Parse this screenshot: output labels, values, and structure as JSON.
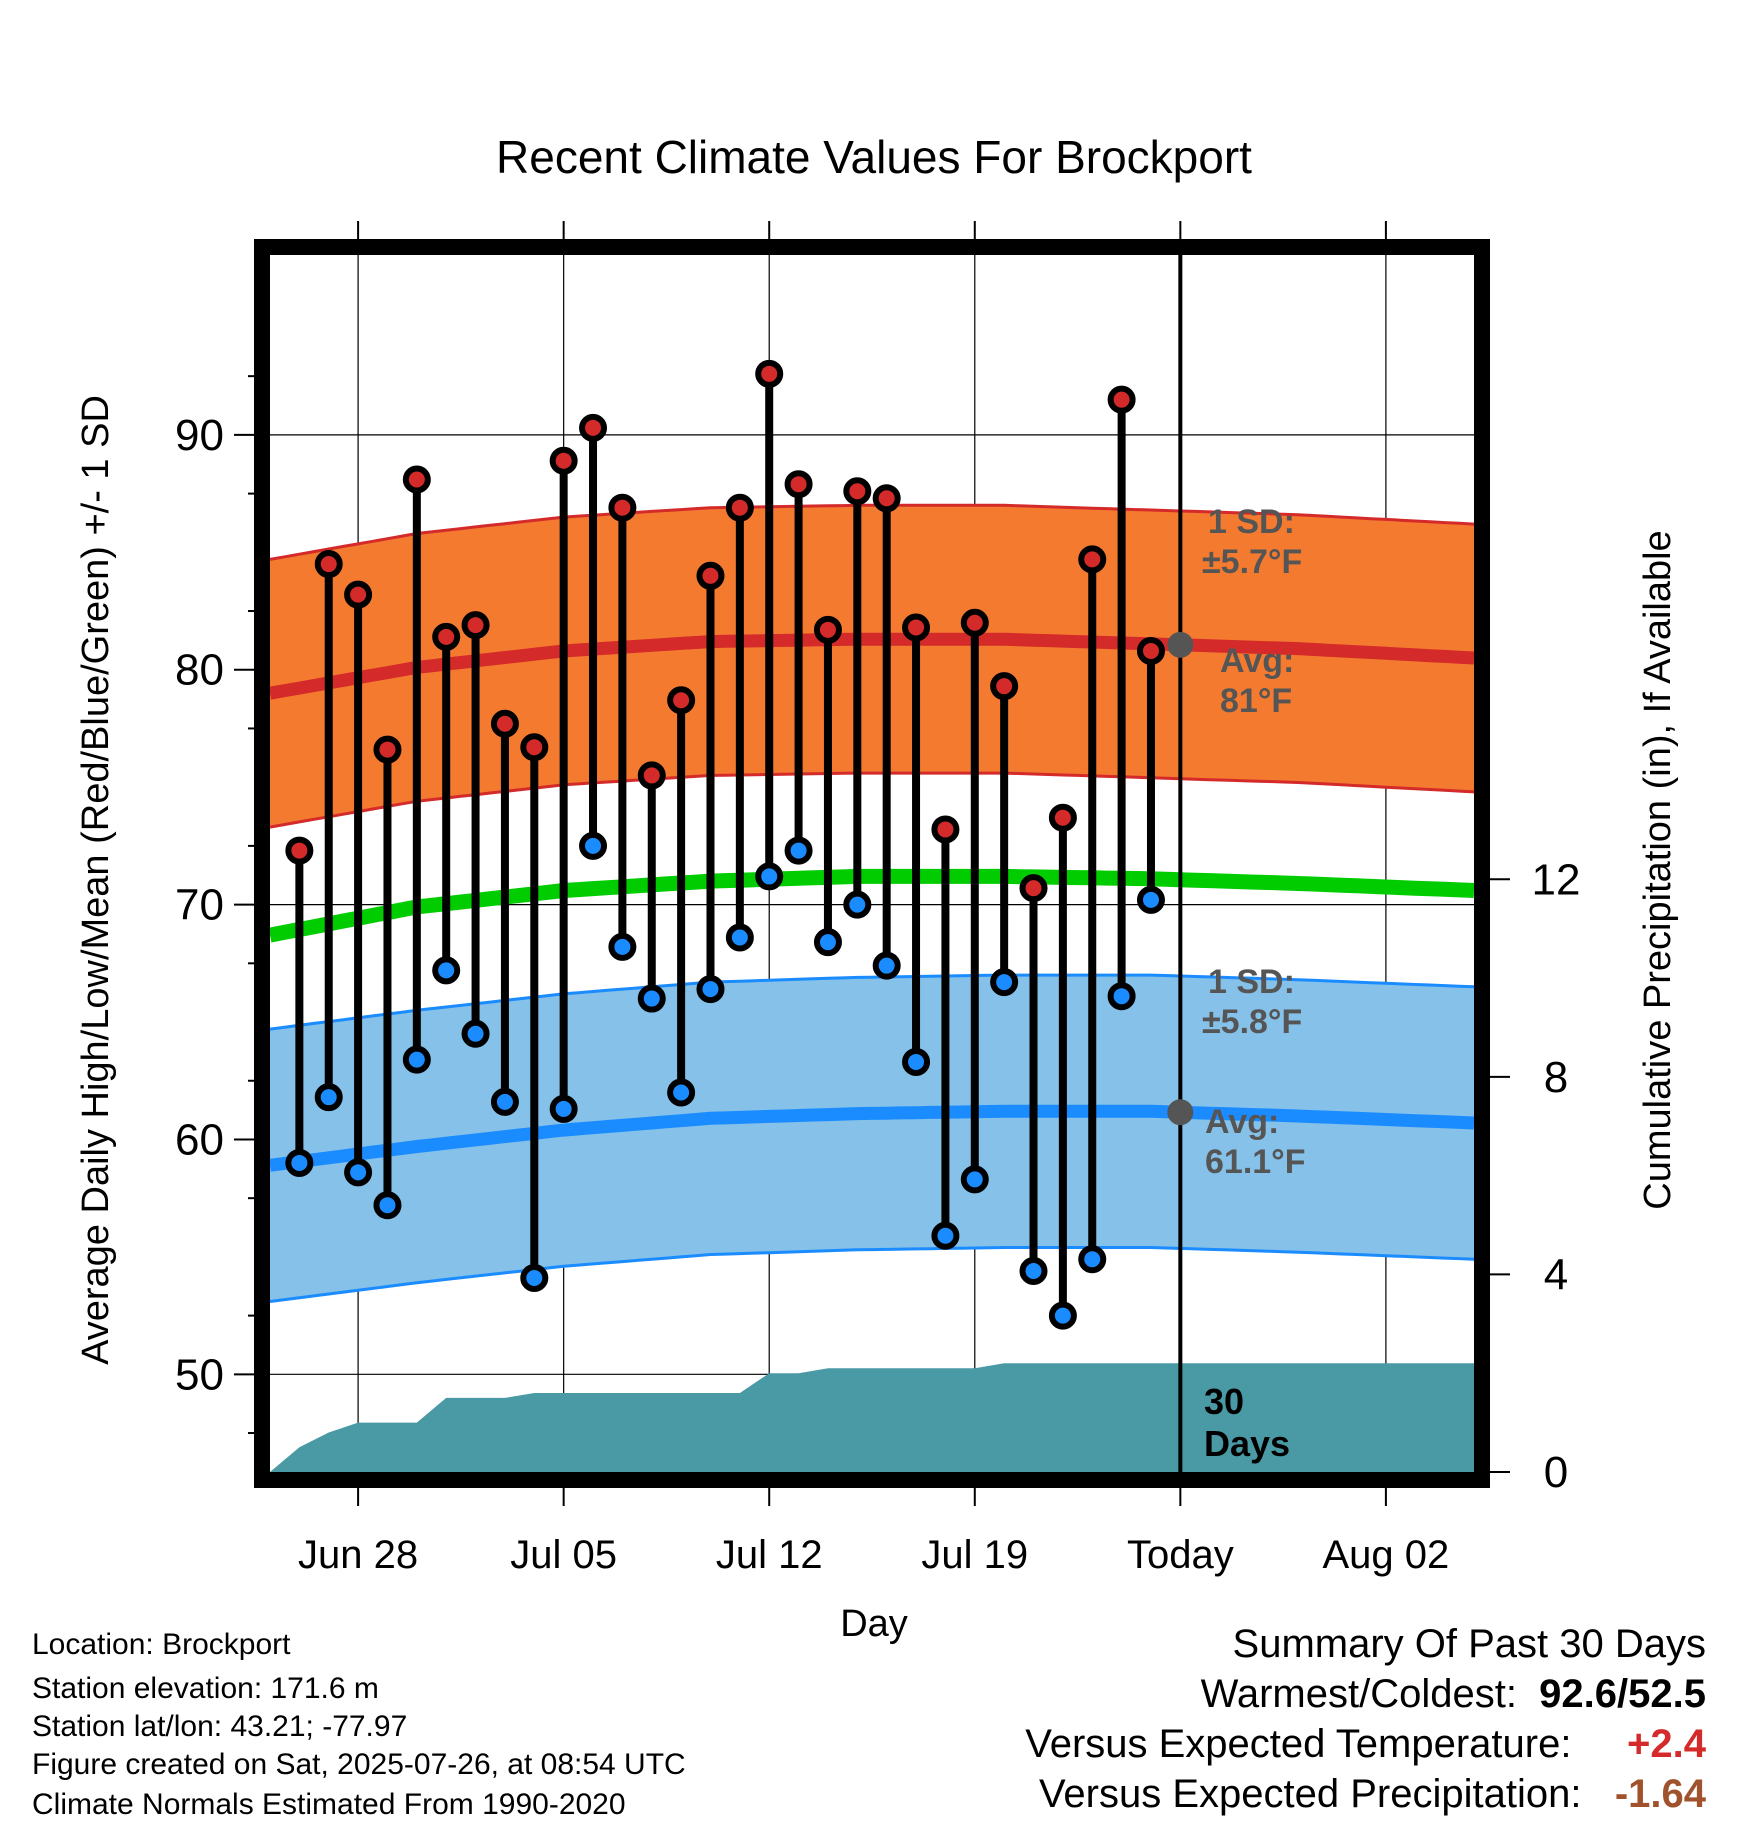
{
  "chart_data": {
    "type": "line",
    "title": "Recent Climate Values For Brockport",
    "xlabel": "Day",
    "ylabel": "Average Daily High/Low/Mean (Red/Blue/Green) +/- 1 SD",
    "y2label": "Cumulative Precipitation (in), If Available",
    "x_tick_labels": [
      "Jun 28",
      "Jul 05",
      "Jul 12",
      "Jul 19",
      "Today",
      "Aug 02"
    ],
    "x_tick_days": [
      3,
      10,
      17,
      24,
      31,
      38
    ],
    "x_range": [
      0,
      41
    ],
    "y_ticks": [
      50,
      60,
      70,
      80,
      90
    ],
    "ylim": [
      45.5,
      98
    ],
    "y2_ticks": [
      0,
      4,
      8,
      12
    ],
    "y2lim": [
      0,
      24.8
    ],
    "grid": true,
    "today_day": 31,
    "days": [
      1,
      2,
      3,
      4,
      5,
      6,
      7,
      8,
      9,
      10,
      11,
      12,
      13,
      14,
      15,
      16,
      17,
      18,
      19,
      20,
      21,
      22,
      23,
      24,
      25,
      26,
      27,
      28,
      29,
      30
    ],
    "daily_high": [
      72.3,
      84.5,
      83.2,
      76.6,
      88.1,
      81.4,
      81.9,
      77.7,
      76.7,
      88.9,
      90.3,
      86.9,
      75.5,
      78.7,
      84.0,
      86.9,
      92.6,
      87.9,
      81.7,
      87.6,
      87.3,
      81.8,
      73.2,
      82.0,
      79.3,
      70.7,
      73.7,
      84.7,
      91.5,
      80.8
    ],
    "daily_low": [
      59.0,
      61.8,
      58.6,
      57.2,
      63.4,
      67.2,
      64.5,
      61.6,
      54.1,
      61.3,
      72.5,
      68.2,
      66.0,
      62.0,
      66.4,
      68.6,
      71.2,
      72.3,
      68.4,
      70.0,
      67.4,
      63.3,
      55.9,
      58.3,
      66.7,
      54.4,
      52.5,
      54.9,
      66.1,
      70.2
    ],
    "normal_days": [
      0,
      5,
      10,
      15,
      20,
      25,
      30,
      35,
      41
    ],
    "normal_high": [
      79.0,
      80.1,
      80.8,
      81.2,
      81.3,
      81.3,
      81.1,
      80.9,
      80.5
    ],
    "normal_high_sd": 5.7,
    "normal_low": [
      58.9,
      59.7,
      60.4,
      60.9,
      61.1,
      61.2,
      61.2,
      61.0,
      60.7
    ],
    "normal_low_sd": 5.8,
    "normal_mean": [
      68.7,
      69.9,
      70.6,
      71.0,
      71.2,
      71.2,
      71.1,
      70.9,
      70.6
    ],
    "precip_days": [
      0,
      1,
      2,
      3,
      4,
      5,
      6,
      7,
      8,
      9,
      10,
      11,
      12,
      13,
      14,
      15,
      16,
      17,
      18,
      19,
      20,
      21,
      22,
      23,
      24,
      25,
      26,
      27,
      28,
      29,
      30,
      31,
      41
    ],
    "cumulative_precip": [
      0,
      0.5,
      0.8,
      1.0,
      1.0,
      1.0,
      1.5,
      1.5,
      1.5,
      1.6,
      1.6,
      1.6,
      1.6,
      1.6,
      1.6,
      1.6,
      1.6,
      2.0,
      2.0,
      2.1,
      2.1,
      2.1,
      2.1,
      2.1,
      2.1,
      2.2,
      2.2,
      2.2,
      2.2,
      2.2,
      2.2,
      2.2,
      2.2
    ],
    "annotations": {
      "high_sd_line1": "1 SD:",
      "high_sd_line2": "±5.7°F",
      "high_avg_line1": "Avg:",
      "high_avg_line2": "81°F",
      "low_sd_line1": "1 SD:",
      "low_sd_line2": "±5.8°F",
      "low_avg_line1": "Avg:",
      "low_avg_line2": "61.1°F",
      "precip_line1": "30",
      "precip_line2": "Days"
    }
  },
  "colors": {
    "high_band": "#f47a30",
    "high_line": "#d42a2a",
    "low_band": "#85c1e8",
    "low_line": "#1a8cff",
    "mean_line": "#00cc00",
    "precip": "#4a9aa5",
    "high_dot": "#d42a2a",
    "low_dot": "#1a8cff",
    "annotation": "#555555",
    "warm": "#d42a2a",
    "dry": "#a0522d"
  },
  "metadata_lines": {
    "location": "Location: Brockport",
    "elevation": "Station elevation: 171.6 m",
    "latlon": "Station lat/lon: 43.21; -77.97",
    "created": "Figure created on Sat, 2025-07-26, at 08:54 UTC",
    "normals": "Climate Normals Estimated From 1990-2020"
  },
  "summary": {
    "heading": "Summary Of Past 30 Days",
    "warm_cold_label": "Warmest/Coldest:",
    "warm_cold_value": "92.6/52.5",
    "temp_label": "Versus Expected Temperature:",
    "temp_value": "+2.4",
    "precip_label": "Versus Expected Precipitation:",
    "precip_value": "-1.64"
  }
}
